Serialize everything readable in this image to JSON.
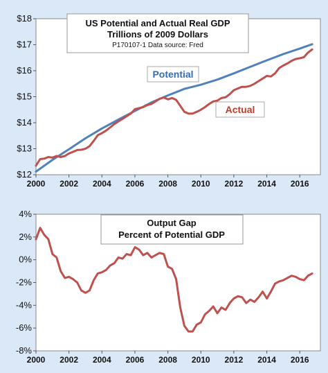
{
  "chart_data": [
    {
      "type": "line",
      "title": "US Potential and Actual Real GDP",
      "subtitle": "Trillions of 2009  Dollars",
      "note": "P170107-1 Data source: Fred",
      "xlim": [
        2000,
        2017.25
      ],
      "ylim": [
        12,
        18
      ],
      "x_ticks": [
        "2000",
        "2002",
        "2004",
        "2006",
        "2008",
        "2010",
        "2012",
        "2014",
        "2016"
      ],
      "y_ticks": [
        {
          "value": 12,
          "label": "$12"
        },
        {
          "value": 13,
          "label": "$13"
        },
        {
          "value": 14,
          "label": "$14"
        },
        {
          "value": 15,
          "label": "$15"
        },
        {
          "value": 16,
          "label": "$16"
        },
        {
          "value": 17,
          "label": "$17"
        },
        {
          "value": 18,
          "label": "$18"
        }
      ],
      "grid": false,
      "series": [
        {
          "name": "Potential",
          "color": "#4f81bd",
          "label_color": "#2f6fb5",
          "points": [
            [
              2000.0,
              12.12
            ],
            [
              2001.0,
              12.57
            ],
            [
              2002.0,
              12.98
            ],
            [
              2003.0,
              13.4
            ],
            [
              2004.0,
              13.78
            ],
            [
              2005.0,
              14.12
            ],
            [
              2006.0,
              14.45
            ],
            [
              2007.0,
              14.78
            ],
            [
              2008.0,
              15.05
            ],
            [
              2009.0,
              15.3
            ],
            [
              2010.0,
              15.46
            ],
            [
              2011.0,
              15.66
            ],
            [
              2012.0,
              15.9
            ],
            [
              2013.0,
              16.15
            ],
            [
              2014.0,
              16.4
            ],
            [
              2015.0,
              16.64
            ],
            [
              2016.0,
              16.85
            ],
            [
              2016.75,
              17.02
            ]
          ]
        },
        {
          "name": "Actual",
          "color": "#c0504d",
          "label_color": "#c0392b",
          "points": [
            [
              2000.0,
              12.35
            ],
            [
              2000.25,
              12.6
            ],
            [
              2000.5,
              12.62
            ],
            [
              2000.75,
              12.68
            ],
            [
              2001.0,
              12.66
            ],
            [
              2001.25,
              12.72
            ],
            [
              2001.5,
              12.68
            ],
            [
              2001.75,
              12.72
            ],
            [
              2002.0,
              12.82
            ],
            [
              2002.25,
              12.88
            ],
            [
              2002.5,
              12.95
            ],
            [
              2002.75,
              12.96
            ],
            [
              2003.0,
              13.0
            ],
            [
              2003.25,
              13.1
            ],
            [
              2003.5,
              13.3
            ],
            [
              2003.75,
              13.52
            ],
            [
              2004.0,
              13.6
            ],
            [
              2004.25,
              13.7
            ],
            [
              2004.5,
              13.82
            ],
            [
              2004.75,
              13.95
            ],
            [
              2005.0,
              14.05
            ],
            [
              2005.25,
              14.15
            ],
            [
              2005.5,
              14.25
            ],
            [
              2005.75,
              14.35
            ],
            [
              2006.0,
              14.52
            ],
            [
              2006.25,
              14.56
            ],
            [
              2006.5,
              14.6
            ],
            [
              2006.75,
              14.68
            ],
            [
              2007.0,
              14.72
            ],
            [
              2007.25,
              14.82
            ],
            [
              2007.5,
              14.92
            ],
            [
              2007.75,
              14.97
            ],
            [
              2008.0,
              14.9
            ],
            [
              2008.25,
              14.95
            ],
            [
              2008.5,
              14.88
            ],
            [
              2008.75,
              14.65
            ],
            [
              2009.0,
              14.42
            ],
            [
              2009.25,
              14.35
            ],
            [
              2009.5,
              14.35
            ],
            [
              2009.75,
              14.42
            ],
            [
              2010.0,
              14.5
            ],
            [
              2010.25,
              14.6
            ],
            [
              2010.5,
              14.72
            ],
            [
              2010.75,
              14.82
            ],
            [
              2011.0,
              14.85
            ],
            [
              2011.25,
              14.95
            ],
            [
              2011.5,
              14.98
            ],
            [
              2011.75,
              15.1
            ],
            [
              2012.0,
              15.25
            ],
            [
              2012.25,
              15.32
            ],
            [
              2012.5,
              15.38
            ],
            [
              2012.75,
              15.38
            ],
            [
              2013.0,
              15.42
            ],
            [
              2013.25,
              15.5
            ],
            [
              2013.5,
              15.6
            ],
            [
              2013.75,
              15.7
            ],
            [
              2014.0,
              15.8
            ],
            [
              2014.25,
              15.78
            ],
            [
              2014.5,
              15.9
            ],
            [
              2014.75,
              16.1
            ],
            [
              2015.0,
              16.2
            ],
            [
              2015.25,
              16.28
            ],
            [
              2015.5,
              16.38
            ],
            [
              2015.75,
              16.45
            ],
            [
              2016.0,
              16.48
            ],
            [
              2016.25,
              16.52
            ],
            [
              2016.5,
              16.7
            ],
            [
              2016.75,
              16.82
            ]
          ]
        }
      ]
    },
    {
      "type": "line",
      "title": "Output Gap",
      "subtitle": "Percent of Potential GDP",
      "xlim": [
        2000,
        2017.25
      ],
      "ylim": [
        -8,
        4
      ],
      "x_ticks": [
        "2000",
        "2002",
        "2004",
        "2006",
        "2008",
        "2010",
        "2012",
        "2014",
        "2016"
      ],
      "y_ticks": [
        {
          "value": 4,
          "label": "4%"
        },
        {
          "value": 2,
          "label": "2%"
        },
        {
          "value": 0,
          "label": "0%"
        },
        {
          "value": -2,
          "label": "-2%"
        },
        {
          "value": -4,
          "label": "-4%"
        },
        {
          "value": -6,
          "label": "-6%"
        },
        {
          "value": -8,
          "label": "-8%"
        }
      ],
      "grid": false,
      "series": [
        {
          "color": "#c0504d",
          "points": [
            [
              2000.0,
              1.8
            ],
            [
              2000.25,
              2.8
            ],
            [
              2000.5,
              2.2
            ],
            [
              2000.75,
              1.8
            ],
            [
              2001.0,
              0.5
            ],
            [
              2001.25,
              0.2
            ],
            [
              2001.5,
              -1.0
            ],
            [
              2001.75,
              -1.6
            ],
            [
              2002.0,
              -1.5
            ],
            [
              2002.25,
              -1.7
            ],
            [
              2002.5,
              -2.0
            ],
            [
              2002.75,
              -2.7
            ],
            [
              2003.0,
              -2.9
            ],
            [
              2003.25,
              -2.7
            ],
            [
              2003.5,
              -1.8
            ],
            [
              2003.75,
              -1.2
            ],
            [
              2004.0,
              -1.1
            ],
            [
              2004.25,
              -0.9
            ],
            [
              2004.5,
              -0.5
            ],
            [
              2004.75,
              -0.3
            ],
            [
              2005.0,
              0.2
            ],
            [
              2005.25,
              0.1
            ],
            [
              2005.5,
              0.5
            ],
            [
              2005.75,
              0.4
            ],
            [
              2006.0,
              1.1
            ],
            [
              2006.25,
              0.9
            ],
            [
              2006.5,
              0.4
            ],
            [
              2006.75,
              0.6
            ],
            [
              2007.0,
              0.2
            ],
            [
              2007.25,
              0.4
            ],
            [
              2007.5,
              0.6
            ],
            [
              2007.75,
              0.5
            ],
            [
              2008.0,
              -0.6
            ],
            [
              2008.25,
              -0.8
            ],
            [
              2008.5,
              -1.7
            ],
            [
              2008.75,
              -4.2
            ],
            [
              2009.0,
              -5.8
            ],
            [
              2009.25,
              -6.3
            ],
            [
              2009.5,
              -6.3
            ],
            [
              2009.75,
              -5.7
            ],
            [
              2010.0,
              -5.5
            ],
            [
              2010.25,
              -4.8
            ],
            [
              2010.5,
              -4.5
            ],
            [
              2010.75,
              -4.1
            ],
            [
              2011.0,
              -4.7
            ],
            [
              2011.25,
              -4.2
            ],
            [
              2011.5,
              -4.4
            ],
            [
              2011.75,
              -3.8
            ],
            [
              2012.0,
              -3.4
            ],
            [
              2012.25,
              -3.2
            ],
            [
              2012.5,
              -3.3
            ],
            [
              2012.75,
              -3.8
            ],
            [
              2013.0,
              -3.5
            ],
            [
              2013.25,
              -3.7
            ],
            [
              2013.5,
              -3.3
            ],
            [
              2013.75,
              -2.8
            ],
            [
              2014.0,
              -3.4
            ],
            [
              2014.25,
              -2.8
            ],
            [
              2014.5,
              -2.1
            ],
            [
              2014.75,
              -1.9
            ],
            [
              2015.0,
              -1.8
            ],
            [
              2015.25,
              -1.6
            ],
            [
              2015.5,
              -1.4
            ],
            [
              2015.75,
              -1.5
            ],
            [
              2016.0,
              -1.7
            ],
            [
              2016.25,
              -1.8
            ],
            [
              2016.5,
              -1.4
            ],
            [
              2016.75,
              -1.2
            ]
          ]
        }
      ]
    }
  ]
}
